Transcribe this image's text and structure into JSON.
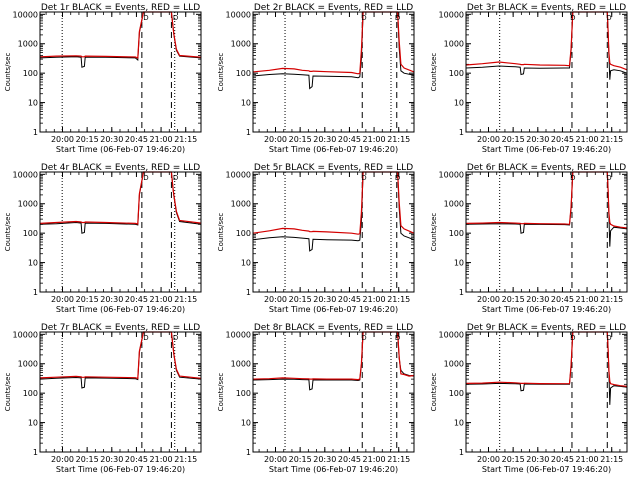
{
  "figure": {
    "panel_titles": [
      "Det 1r BLACK = Events, RED = LLD",
      "Det 2r BLACK = Events, RED = LLD",
      "Det 3r BLACK = Events, RED = LLD",
      "Det 4r BLACK = Events, RED = LLD",
      "Det 5r BLACK = Events, RED = LLD",
      "Det 6r BLACK = Events, RED = LLD",
      "Det 7r BLACK = Events, RED = LLD",
      "Det 8r BLACK = Events, RED = LLD",
      "Det 9r BLACK = Events, RED = LLD"
    ],
    "xlabel": "Start Time (06-Feb-07 19:46:20)",
    "ylabel": "Counts/sec",
    "saa_marker": "D",
    "colors": {
      "events": "#000000",
      "lld": "#d40000",
      "axes": "#000000",
      "background": "#ffffff"
    }
  },
  "chart_data": {
    "type": "line",
    "count": 9,
    "x_unit": "minutes since 19:46:20",
    "xlim": [
      0,
      98
    ],
    "ylim": [
      1,
      12000
    ],
    "yscale": "log",
    "yticks": [
      1,
      10,
      100,
      1000,
      10000
    ],
    "ytick_labels": [
      "1",
      "10",
      "100",
      "1000",
      "10000"
    ],
    "xticks": [
      13.7,
      28.7,
      43.7,
      58.7,
      73.7,
      88.7
    ],
    "xtick_labels": [
      "20:00",
      "20:15",
      "20:30",
      "20:45",
      "21:00",
      "21:15"
    ],
    "series_names": [
      "Events",
      "LLD"
    ],
    "panels": [
      {
        "title": "Det 1r BLACK = Events, RED = LLD",
        "dotted_x": [
          13.5,
          82.0
        ],
        "dashed_x": [
          62.0,
          80.0
        ],
        "saa_labels": [
          {
            "x": 64.5,
            "text": "D"
          },
          {
            "x": 82.5,
            "text": "D"
          }
        ],
        "events": {
          "x": [
            0,
            10,
            22,
            25,
            25.5,
            27,
            27.5,
            40,
            58,
            59.5,
            60.5,
            63,
            63.5,
            66,
            72,
            76,
            77,
            80,
            81,
            81.5,
            83,
            85,
            98
          ],
          "y": [
            330,
            350,
            360,
            350,
            160,
            170,
            350,
            345,
            330,
            280,
            2400,
            12000,
            12000,
            12000,
            12000,
            12000,
            12000,
            12000,
            3500,
            2000,
            600,
            380,
            330
          ]
        },
        "lld": {
          "x": [
            0,
            10,
            22,
            25,
            25.5,
            27,
            27.5,
            40,
            58,
            59.5,
            60.5,
            63,
            63.5,
            66,
            72,
            76,
            77,
            80,
            81,
            81.5,
            83,
            85,
            98
          ],
          "y": [
            360,
            380,
            390,
            380,
            360,
            360,
            380,
            370,
            355,
            330,
            2600,
            12000,
            12000,
            12000,
            12000,
            12000,
            12000,
            12000,
            3600,
            2100,
            650,
            400,
            350
          ]
        }
      },
      {
        "title": "Det 2r BLACK = Events, RED = LLD",
        "dotted_x": [
          19.5,
          84.0
        ],
        "dashed_x": [
          66.5,
          87.5
        ],
        "saa_labels": [
          {
            "x": 67.5,
            "text": "D"
          },
          {
            "x": 88.0,
            "text": "D"
          }
        ],
        "events": {
          "x": [
            0,
            10,
            18,
            25,
            30,
            34,
            34.5,
            36,
            36.5,
            45,
            60,
            64,
            65,
            66,
            67,
            68.5,
            82,
            85,
            86,
            88,
            89,
            90,
            92,
            98
          ],
          "y": [
            80,
            90,
            95,
            92,
            88,
            85,
            30,
            35,
            80,
            78,
            75,
            70,
            75,
            300,
            12000,
            12000,
            12000,
            12000,
            12000,
            12000,
            700,
            120,
            100,
            85
          ]
        },
        "lld": {
          "x": [
            0,
            10,
            18,
            25,
            30,
            34,
            34.5,
            36,
            36.5,
            45,
            60,
            64,
            65,
            66,
            67,
            68.5,
            82,
            85,
            86,
            88,
            89,
            90,
            92,
            98
          ],
          "y": [
            110,
            125,
            145,
            140,
            125,
            120,
            115,
            115,
            118,
            112,
            105,
            95,
            100,
            600,
            12000,
            12000,
            12000,
            12000,
            12000,
            12000,
            1200,
            200,
            150,
            110
          ]
        }
      },
      {
        "title": "Det 3r BLACK = Events, RED = LLD",
        "dotted_x": [
          20.5
        ],
        "dashed_x": [
          64.5,
          86.0
        ],
        "saa_labels": [
          {
            "x": 65.0,
            "text": "D"
          },
          {
            "x": 87.0,
            "text": "D"
          }
        ],
        "events": {
          "x": [
            0,
            10,
            20,
            30,
            33,
            33.5,
            35,
            35.5,
            45,
            60,
            63,
            64,
            65,
            86,
            86.5,
            87,
            87.5,
            88,
            90,
            94,
            98
          ],
          "y": [
            150,
            160,
            175,
            165,
            160,
            90,
            95,
            150,
            148,
            150,
            150,
            600,
            12000,
            12000,
            2500,
            400,
            60,
            120,
            130,
            120,
            100
          ]
        },
        "lld": {
          "x": [
            0,
            10,
            20,
            30,
            33,
            33.5,
            35,
            35.5,
            45,
            60,
            63,
            64,
            65,
            86,
            86.5,
            87,
            87.5,
            88,
            90,
            94,
            98
          ],
          "y": [
            190,
            210,
            240,
            210,
            200,
            195,
            195,
            200,
            190,
            185,
            180,
            700,
            12000,
            12000,
            2800,
            500,
            220,
            200,
            180,
            160,
            130
          ]
        }
      },
      {
        "title": "Det 4r BLACK = Events, RED = LLD",
        "dotted_x": [
          13.5,
          82.0
        ],
        "dashed_x": [
          62.0,
          80.0
        ],
        "saa_labels": [
          {
            "x": 64.5,
            "text": "D"
          },
          {
            "x": 82.5,
            "text": "D"
          }
        ],
        "events": {
          "x": [
            0,
            10,
            22,
            25,
            25.5,
            27,
            27.5,
            40,
            58,
            59.5,
            60.5,
            63,
            63.5,
            76,
            77,
            80,
            81,
            81.5,
            83,
            85,
            98
          ],
          "y": [
            200,
            210,
            230,
            220,
            100,
            105,
            220,
            215,
            200,
            190,
            2000,
            12000,
            12000,
            12000,
            12000,
            12000,
            3000,
            1800,
            500,
            250,
            200
          ]
        },
        "lld": {
          "x": [
            0,
            10,
            22,
            25,
            25.5,
            27,
            27.5,
            40,
            58,
            59.5,
            60.5,
            63,
            63.5,
            76,
            77,
            80,
            81,
            81.5,
            83,
            85,
            98
          ],
          "y": [
            215,
            230,
            250,
            240,
            230,
            230,
            240,
            230,
            215,
            205,
            2200,
            12000,
            12000,
            12000,
            12000,
            12000,
            3200,
            1900,
            550,
            270,
            220
          ]
        }
      },
      {
        "title": "Det 5r BLACK = Events, RED = LLD",
        "dotted_x": [
          19.5,
          84.0
        ],
        "dashed_x": [
          66.5,
          87.5
        ],
        "saa_labels": [
          {
            "x": 67.5,
            "text": "D"
          },
          {
            "x": 88.0,
            "text": "D"
          }
        ],
        "events": {
          "x": [
            0,
            10,
            18,
            25,
            30,
            34,
            34.5,
            36,
            36.5,
            45,
            60,
            64,
            65,
            66,
            67,
            68.5,
            82,
            85,
            86,
            88,
            89,
            90,
            92,
            98
          ],
          "y": [
            60,
            70,
            75,
            72,
            68,
            65,
            25,
            28,
            62,
            60,
            58,
            55,
            58,
            250,
            12000,
            12000,
            12000,
            12000,
            12000,
            12000,
            700,
            100,
            80,
            60
          ]
        },
        "lld": {
          "x": [
            0,
            10,
            18,
            25,
            30,
            34,
            34.5,
            36,
            36.5,
            45,
            60,
            64,
            65,
            66,
            67,
            68.5,
            82,
            85,
            86,
            88,
            89,
            90,
            92,
            98
          ],
          "y": [
            100,
            120,
            145,
            140,
            125,
            118,
            112,
            112,
            115,
            110,
            100,
            92,
            95,
            500,
            12000,
            12000,
            12000,
            12000,
            12000,
            12000,
            1100,
            180,
            140,
            100
          ]
        }
      },
      {
        "title": "Det 6r BLACK = Events, RED = LLD",
        "dotted_x": [
          20.5
        ],
        "dashed_x": [
          64.5,
          86.0
        ],
        "saa_labels": [
          {
            "x": 65.0,
            "text": "D"
          },
          {
            "x": 87.0,
            "text": "D"
          }
        ],
        "events": {
          "x": [
            0,
            10,
            20,
            30,
            33,
            33.5,
            35,
            35.5,
            45,
            60,
            63,
            64,
            65,
            86,
            86.5,
            87,
            87.5,
            88,
            90,
            94,
            98
          ],
          "y": [
            200,
            205,
            210,
            205,
            200,
            100,
            105,
            200,
            198,
            195,
            190,
            700,
            12000,
            12000,
            2800,
            400,
            35,
            120,
            160,
            150,
            140
          ]
        },
        "lld": {
          "x": [
            0,
            10,
            20,
            30,
            33,
            33.5,
            35,
            35.5,
            45,
            60,
            63,
            64,
            65,
            86,
            86.5,
            87,
            87.5,
            88,
            90,
            94,
            98
          ],
          "y": [
            215,
            220,
            230,
            220,
            215,
            210,
            210,
            215,
            210,
            205,
            200,
            800,
            12000,
            12000,
            3000,
            500,
            230,
            200,
            175,
            160,
            150
          ]
        }
      },
      {
        "title": "Det 7r BLACK = Events, RED = LLD",
        "dotted_x": [
          13.5,
          82.0
        ],
        "dashed_x": [
          62.0,
          80.0
        ],
        "saa_labels": [
          {
            "x": 64.5,
            "text": "D"
          },
          {
            "x": 82.5,
            "text": "D"
          }
        ],
        "events": {
          "x": [
            0,
            10,
            22,
            25,
            25.5,
            27,
            27.5,
            40,
            58,
            59.5,
            60.5,
            63,
            63.5,
            76,
            77,
            80,
            81,
            81.5,
            83,
            85,
            98
          ],
          "y": [
            300,
            320,
            340,
            330,
            150,
            160,
            330,
            325,
            310,
            290,
            2500,
            12000,
            12000,
            12000,
            12000,
            12000,
            3500,
            2000,
            600,
            350,
            300
          ]
        },
        "lld": {
          "x": [
            0,
            10,
            22,
            25,
            25.5,
            27,
            27.5,
            40,
            58,
            59.5,
            60.5,
            63,
            63.5,
            76,
            77,
            80,
            81,
            81.5,
            83,
            85,
            98
          ],
          "y": [
            330,
            350,
            370,
            360,
            345,
            345,
            360,
            350,
            335,
            315,
            2700,
            12000,
            12000,
            12000,
            12000,
            12000,
            3700,
            2100,
            650,
            380,
            320
          ]
        }
      },
      {
        "title": "Det 8r BLACK = Events, RED = LLD",
        "dotted_x": [
          19.5,
          84.0
        ],
        "dashed_x": [
          66.5,
          87.5
        ],
        "saa_labels": [
          {
            "x": 67.5,
            "text": "D"
          },
          {
            "x": 88.0,
            "text": "D"
          }
        ],
        "events": {
          "x": [
            0,
            10,
            18,
            25,
            30,
            34,
            34.5,
            36,
            36.5,
            45,
            60,
            64,
            65,
            66,
            67,
            68.5,
            82,
            85,
            86,
            88,
            89,
            90,
            92,
            95,
            98
          ],
          "y": [
            280,
            290,
            300,
            295,
            290,
            285,
            130,
            140,
            280,
            280,
            280,
            270,
            280,
            900,
            12000,
            12000,
            12000,
            12000,
            12000,
            12000,
            1500,
            600,
            450,
            400,
            380
          ]
        },
        "lld": {
          "x": [
            0,
            10,
            18,
            25,
            30,
            34,
            34.5,
            36,
            36.5,
            45,
            60,
            64,
            65,
            66,
            67,
            68.5,
            82,
            85,
            86,
            88,
            89,
            90,
            92,
            95,
            98
          ],
          "y": [
            300,
            310,
            330,
            320,
            310,
            305,
            300,
            300,
            305,
            300,
            300,
            290,
            300,
            1000,
            12000,
            12000,
            12000,
            12000,
            12000,
            12000,
            1700,
            450,
            430,
            380,
            400
          ]
        }
      },
      {
        "title": "Det 9r BLACK = Events, RED = LLD",
        "dotted_x": [
          20.5
        ],
        "dashed_x": [
          64.5,
          86.0
        ],
        "saa_labels": [
          {
            "x": 65.0,
            "text": "D"
          },
          {
            "x": 87.0,
            "text": "D"
          }
        ],
        "events": {
          "x": [
            0,
            10,
            20,
            30,
            33,
            33.5,
            35,
            35.5,
            45,
            60,
            63,
            64,
            65,
            86,
            86.5,
            87,
            87.5,
            88,
            90,
            94,
            98
          ],
          "y": [
            200,
            205,
            215,
            210,
            205,
            120,
            125,
            205,
            200,
            200,
            200,
            800,
            12000,
            12000,
            3000,
            500,
            40,
            150,
            180,
            170,
            160
          ]
        },
        "lld": {
          "x": [
            0,
            10,
            20,
            30,
            33,
            33.5,
            35,
            35.5,
            45,
            60,
            63,
            64,
            65,
            86,
            86.5,
            87,
            87.5,
            88,
            90,
            94,
            98
          ],
          "y": [
            215,
            220,
            235,
            225,
            218,
            215,
            215,
            218,
            212,
            210,
            210,
            900,
            12000,
            12000,
            3200,
            600,
            250,
            210,
            195,
            180,
            170
          ]
        }
      }
    ]
  }
}
